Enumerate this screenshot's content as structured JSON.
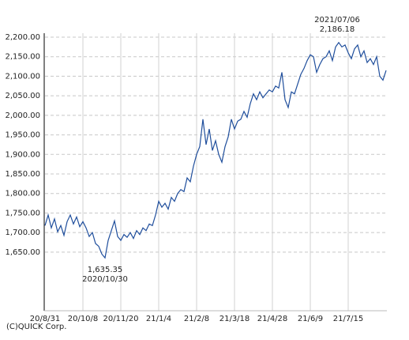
{
  "chart_data": {
    "type": "line",
    "categories": [
      "20/8/31",
      null,
      null,
      null,
      null,
      null,
      null,
      null,
      null,
      null,
      null,
      null,
      "20/10/8",
      null,
      null,
      null,
      null,
      null,
      null,
      null,
      null,
      null,
      null,
      null,
      "20/11/20",
      null,
      null,
      null,
      null,
      null,
      null,
      null,
      null,
      null,
      null,
      null,
      "21/1/4",
      null,
      null,
      null,
      null,
      null,
      null,
      null,
      null,
      null,
      null,
      null,
      "21/2/8",
      null,
      null,
      null,
      null,
      null,
      null,
      null,
      null,
      null,
      null,
      null,
      "21/3/18",
      null,
      null,
      null,
      null,
      null,
      null,
      null,
      null,
      null,
      null,
      null,
      "21/4/28",
      null,
      null,
      null,
      null,
      null,
      null,
      null,
      null,
      null,
      null,
      null,
      "21/6/9",
      null,
      null,
      null,
      null,
      null,
      null,
      null,
      null,
      null,
      null,
      null,
      "21/7/15",
      null,
      null,
      null,
      null,
      null,
      null,
      null,
      null,
      null,
      null,
      null,
      null
    ],
    "values": [
      1718,
      1745,
      1712,
      1735,
      1702,
      1718,
      1693,
      1728,
      1745,
      1722,
      1740,
      1715,
      1728,
      1712,
      1690,
      1700,
      1672,
      1665,
      1645,
      1635.35,
      1680,
      1705,
      1730,
      1690,
      1680,
      1695,
      1688,
      1700,
      1685,
      1705,
      1695,
      1712,
      1705,
      1722,
      1718,
      1745,
      1780,
      1765,
      1775,
      1760,
      1790,
      1780,
      1800,
      1810,
      1805,
      1840,
      1830,
      1870,
      1900,
      1920,
      1990,
      1925,
      1965,
      1910,
      1935,
      1900,
      1880,
      1920,
      1945,
      1990,
      1965,
      1985,
      1990,
      2010,
      1995,
      2030,
      2055,
      2040,
      2060,
      2045,
      2055,
      2065,
      2060,
      2075,
      2070,
      2110,
      2040,
      2020,
      2060,
      2055,
      2080,
      2105,
      2120,
      2140,
      2155,
      2150,
      2110,
      2130,
      2145,
      2150,
      2165,
      2140,
      2175,
      2186.18,
      2175,
      2180,
      2160,
      2145,
      2170,
      2180,
      2150,
      2165,
      2135,
      2145,
      2130,
      2150,
      2100,
      2090,
      2115
    ],
    "color": "#1f4e9c",
    "ylim": [
      1500,
      2200
    ],
    "yticks": [
      {
        "value": 1650,
        "label": "1,650.00"
      },
      {
        "value": 1700,
        "label": "1,700.00"
      },
      {
        "value": 1750,
        "label": "1,750.00"
      },
      {
        "value": 1800,
        "label": "1,800.00"
      },
      {
        "value": 1850,
        "label": "1,850.00"
      },
      {
        "value": 1900,
        "label": "1,900.00"
      },
      {
        "value": 1950,
        "label": "1,950.00"
      },
      {
        "value": 2000,
        "label": "2,000.00"
      },
      {
        "value": 2050,
        "label": "2,050.00"
      },
      {
        "value": 2100,
        "label": "2,100.00"
      },
      {
        "value": 2150,
        "label": "2,150.00"
      },
      {
        "value": 2200,
        "label": "2,200.00"
      }
    ],
    "grid": true,
    "annotations": {
      "low": [
        "1,635.35",
        "2020/10/30"
      ],
      "high": [
        "2021/07/06",
        "2,186.18"
      ]
    },
    "source": "(C)QUICK Corp."
  }
}
